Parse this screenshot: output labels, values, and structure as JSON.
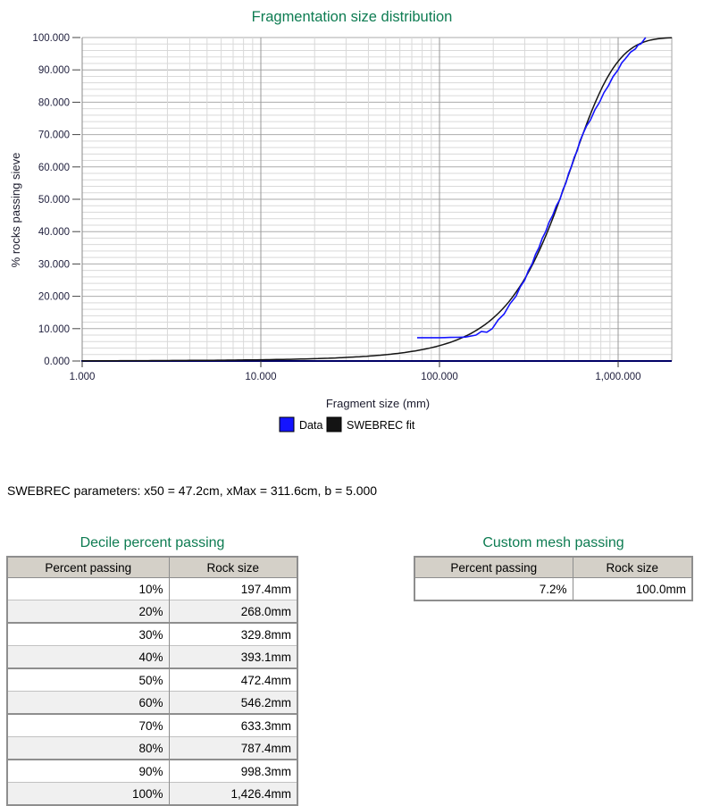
{
  "colors": {
    "title_green": "#0E7C52",
    "axis_text": "#1e1e3c",
    "grid_minor": "#d9d9d9",
    "grid_major": "#ababab",
    "axis_line_x": "#000066",
    "axis_line_y": "#8a8a8a",
    "data_blue": "#1414ff",
    "fit_black": "#141414",
    "table_header_bg": "#d4d0c8",
    "table_alt_bg": "#f0f0f0",
    "table_border": "#8e8e8e"
  },
  "chart_data": {
    "type": "line",
    "title": "Fragmentation size distribution",
    "xlabel": "Fragment size (mm)",
    "ylabel": "% rocks passing sieve",
    "x_scale": "log",
    "xlim": [
      1,
      2000
    ],
    "ylim": [
      0,
      100
    ],
    "y_major_step": 10,
    "y_minor_step": 2,
    "grid": true,
    "legend_position": "bottom",
    "x_ticks": [
      {
        "x": 1,
        "label": "1.000"
      },
      {
        "x": 10,
        "label": "10.000"
      },
      {
        "x": 100,
        "label": "100.000"
      },
      {
        "x": 1000,
        "label": "1,000.000"
      }
    ],
    "y_ticks": [
      {
        "p": 0,
        "label": "0.000"
      },
      {
        "p": 10,
        "label": "10.000"
      },
      {
        "p": 20,
        "label": "20.000"
      },
      {
        "p": 30,
        "label": "30.000"
      },
      {
        "p": 40,
        "label": "40.000"
      },
      {
        "p": 50,
        "label": "50.000"
      },
      {
        "p": 60,
        "label": "60.000"
      },
      {
        "p": 70,
        "label": "70.000"
      },
      {
        "p": 80,
        "label": "80.000"
      },
      {
        "p": 90,
        "label": "90.000"
      },
      {
        "p": 100,
        "label": "100.000"
      }
    ],
    "series": [
      {
        "name": "Data",
        "color": "#1414ff",
        "points": [
          [
            75,
            7.2
          ],
          [
            100,
            7.2
          ],
          [
            140,
            7.4
          ],
          [
            160,
            8.0
          ],
          [
            197.4,
            10
          ],
          [
            230,
            14.5
          ],
          [
            268,
            20
          ],
          [
            300,
            25
          ],
          [
            329.8,
            30
          ],
          [
            360,
            35
          ],
          [
            393.1,
            40
          ],
          [
            430,
            45
          ],
          [
            472.4,
            50
          ],
          [
            510,
            55
          ],
          [
            546.2,
            60
          ],
          [
            590,
            65
          ],
          [
            633.3,
            70
          ],
          [
            700,
            74.5
          ],
          [
            787.4,
            80
          ],
          [
            880,
            85
          ],
          [
            998.3,
            90
          ],
          [
            1100,
            93.5
          ],
          [
            1250,
            96.5
          ],
          [
            1340,
            98
          ],
          [
            1426.4,
            100
          ]
        ]
      },
      {
        "name": "SWEBREC fit",
        "color": "#141414",
        "fit_params": {
          "x50_cm": 47.2,
          "xMax_cm": 311.6,
          "b": 5.0
        }
      }
    ]
  },
  "params_line": "SWEBREC parameters: x50 = 47.2cm, xMax = 311.6cm, b = 5.000",
  "decile_table": {
    "title": "Decile percent passing",
    "columns": [
      "Percent passing",
      "Rock size"
    ],
    "rows": [
      [
        "10%",
        "197.4mm"
      ],
      [
        "20%",
        "268.0mm"
      ],
      [
        "30%",
        "329.8mm"
      ],
      [
        "40%",
        "393.1mm"
      ],
      [
        "50%",
        "472.4mm"
      ],
      [
        "60%",
        "546.2mm"
      ],
      [
        "70%",
        "633.3mm"
      ],
      [
        "80%",
        "787.4mm"
      ],
      [
        "90%",
        "998.3mm"
      ],
      [
        "100%",
        "1,426.4mm"
      ]
    ]
  },
  "custom_table": {
    "title": "Custom mesh passing",
    "columns": [
      "Percent passing",
      "Rock size"
    ],
    "rows": [
      [
        "7.2%",
        "100.0mm"
      ]
    ]
  }
}
